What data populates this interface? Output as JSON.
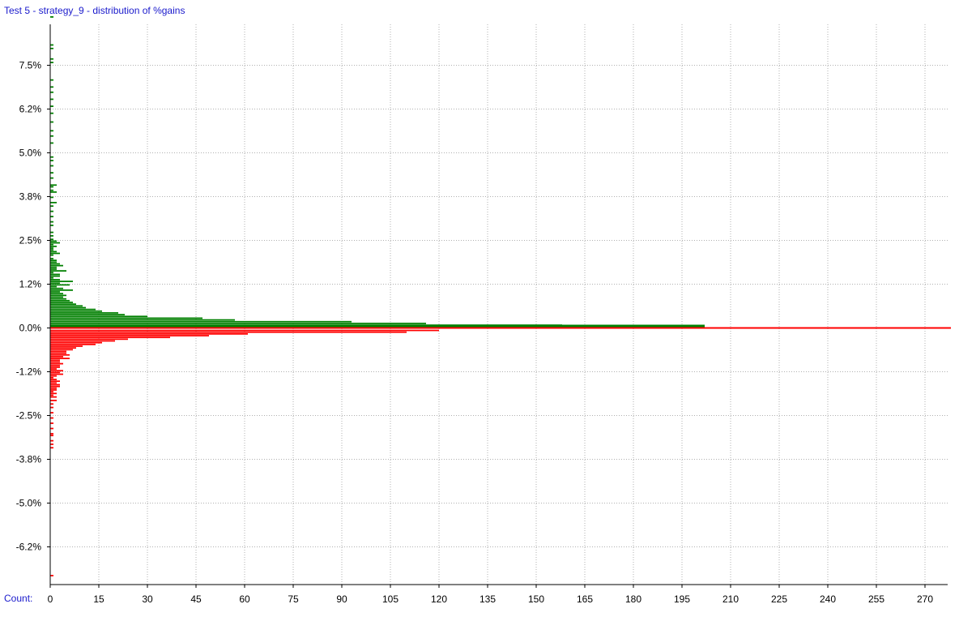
{
  "title": "Test 5 - strategy_9 - distribution of %gains",
  "count_label": "Count:",
  "colors": {
    "gain": "#008000",
    "loss": "#ff0000",
    "grid": "#b0b0b0",
    "axis": "#000000",
    "label": "#1a1acc"
  },
  "chart_data": {
    "type": "bar",
    "orientation": "horizontal",
    "title": "Test 5 - strategy_9 - distribution of %gains",
    "xlabel": "Count:",
    "ylabel": "",
    "xlim": [
      0,
      280
    ],
    "ylim": [
      -7.5,
      9.2
    ],
    "x_ticks": [
      0,
      15,
      30,
      45,
      60,
      75,
      90,
      105,
      120,
      135,
      150,
      165,
      180,
      195,
      210,
      225,
      240,
      255,
      270
    ],
    "y_tick_values": [
      7.5,
      6.25,
      5.0,
      3.75,
      2.5,
      1.25,
      0.0,
      -1.25,
      -2.5,
      -3.75,
      -5.0,
      -6.25
    ],
    "y_tick_labels": [
      "7.5%",
      "6.2%",
      "5.0%",
      "3.8%",
      "2.5%",
      "1.2%",
      "0.0%",
      "-1.2%",
      "-2.5%",
      "-3.8%",
      "-5.0%",
      "-6.2%"
    ],
    "grid": true,
    "series": [
      {
        "color": "#008000",
        "bins": [
          [
            0.0,
            202
          ],
          [
            0.05,
            158
          ],
          [
            0.1,
            116
          ],
          [
            0.15,
            93
          ],
          [
            0.2,
            57
          ],
          [
            0.25,
            47
          ],
          [
            0.3,
            30
          ],
          [
            0.35,
            23
          ],
          [
            0.4,
            21
          ],
          [
            0.45,
            16
          ],
          [
            0.5,
            14
          ],
          [
            0.55,
            11
          ],
          [
            0.6,
            10
          ],
          [
            0.65,
            8
          ],
          [
            0.7,
            7
          ],
          [
            0.75,
            6
          ],
          [
            0.8,
            5
          ],
          [
            0.85,
            4
          ],
          [
            0.9,
            5
          ],
          [
            0.95,
            4
          ],
          [
            1.0,
            3
          ],
          [
            1.05,
            7
          ],
          [
            1.1,
            4
          ],
          [
            1.15,
            2
          ],
          [
            1.2,
            6
          ],
          [
            1.25,
            3
          ],
          [
            1.3,
            7
          ],
          [
            1.35,
            3
          ],
          [
            1.4,
            1
          ],
          [
            1.45,
            3
          ],
          [
            1.5,
            3
          ],
          [
            1.55,
            1
          ],
          [
            1.6,
            5
          ],
          [
            1.65,
            2
          ],
          [
            1.7,
            2
          ],
          [
            1.75,
            4
          ],
          [
            1.8,
            3
          ],
          [
            1.85,
            2
          ],
          [
            1.9,
            2
          ],
          [
            1.95,
            1
          ],
          [
            2.05,
            1
          ],
          [
            2.1,
            3
          ],
          [
            2.15,
            2
          ],
          [
            2.2,
            1
          ],
          [
            2.25,
            1
          ],
          [
            2.3,
            2
          ],
          [
            2.35,
            1
          ],
          [
            2.4,
            3
          ],
          [
            2.45,
            2
          ],
          [
            2.5,
            1
          ],
          [
            2.6,
            1
          ],
          [
            2.7,
            1
          ],
          [
            2.9,
            1
          ],
          [
            3.0,
            1
          ],
          [
            3.15,
            1
          ],
          [
            3.3,
            1
          ],
          [
            3.45,
            1
          ],
          [
            3.55,
            2
          ],
          [
            3.7,
            1
          ],
          [
            3.85,
            2
          ],
          [
            3.9,
            1
          ],
          [
            4.0,
            1
          ],
          [
            4.05,
            2
          ],
          [
            4.25,
            1
          ],
          [
            4.4,
            1
          ],
          [
            4.6,
            1
          ],
          [
            4.75,
            1
          ],
          [
            4.85,
            1
          ],
          [
            5.25,
            1
          ],
          [
            5.45,
            1
          ],
          [
            5.6,
            1
          ],
          [
            5.85,
            1
          ],
          [
            6.1,
            1
          ],
          [
            6.3,
            1
          ],
          [
            6.5,
            1
          ],
          [
            6.7,
            1
          ],
          [
            6.85,
            1
          ],
          [
            7.05,
            1
          ],
          [
            7.55,
            1
          ],
          [
            7.65,
            1
          ],
          [
            7.95,
            1
          ],
          [
            8.05,
            1
          ],
          [
            8.85,
            1
          ]
        ]
      },
      {
        "color": "#ff0000",
        "bins": [
          [
            0.0,
            278
          ],
          [
            -0.05,
            120
          ],
          [
            -0.1,
            110
          ],
          [
            -0.15,
            61
          ],
          [
            -0.2,
            49
          ],
          [
            -0.25,
            37
          ],
          [
            -0.3,
            24
          ],
          [
            -0.35,
            20
          ],
          [
            -0.4,
            16
          ],
          [
            -0.45,
            14
          ],
          [
            -0.5,
            10
          ],
          [
            -0.55,
            8
          ],
          [
            -0.6,
            7
          ],
          [
            -0.65,
            5
          ],
          [
            -0.7,
            5
          ],
          [
            -0.75,
            6
          ],
          [
            -0.8,
            4
          ],
          [
            -0.85,
            6
          ],
          [
            -0.9,
            3
          ],
          [
            -0.95,
            3
          ],
          [
            -1.0,
            4
          ],
          [
            -1.05,
            3
          ],
          [
            -1.1,
            3
          ],
          [
            -1.15,
            2
          ],
          [
            -1.2,
            4
          ],
          [
            -1.25,
            3
          ],
          [
            -1.3,
            4
          ],
          [
            -1.35,
            2
          ],
          [
            -1.4,
            1
          ],
          [
            -1.45,
            2
          ],
          [
            -1.5,
            3
          ],
          [
            -1.55,
            2
          ],
          [
            -1.6,
            3
          ],
          [
            -1.65,
            3
          ],
          [
            -1.7,
            2
          ],
          [
            -1.75,
            2
          ],
          [
            -1.8,
            1
          ],
          [
            -1.85,
            2
          ],
          [
            -1.9,
            1
          ],
          [
            -1.95,
            2
          ],
          [
            -2.05,
            2
          ],
          [
            -2.15,
            1
          ],
          [
            -2.25,
            1
          ],
          [
            -2.4,
            1
          ],
          [
            -2.55,
            1
          ],
          [
            -2.7,
            1
          ],
          [
            -2.85,
            1
          ],
          [
            -3.0,
            1
          ],
          [
            -3.05,
            1
          ],
          [
            -3.2,
            1
          ],
          [
            -3.3,
            1
          ],
          [
            -3.4,
            1
          ],
          [
            -7.05,
            1
          ]
        ]
      }
    ]
  }
}
